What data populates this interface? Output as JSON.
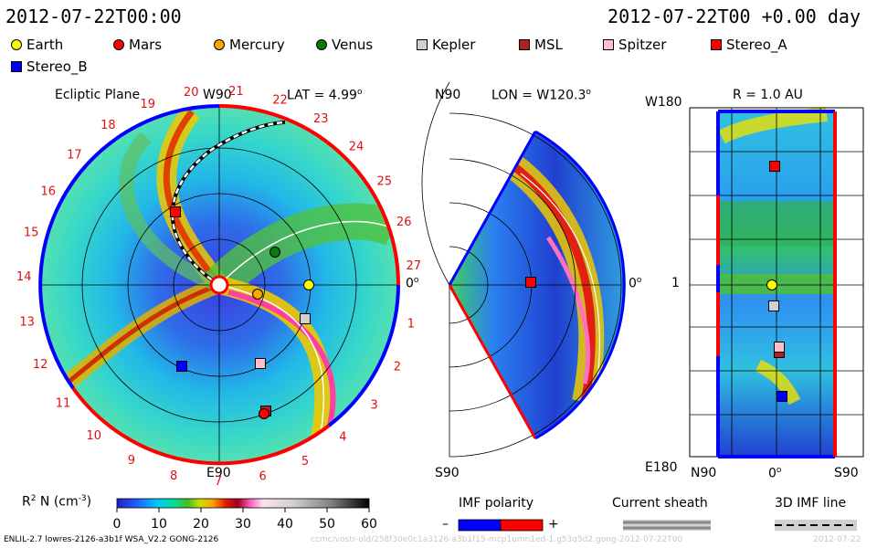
{
  "header": {
    "left_time": "2012-07-22T00:00",
    "right_time": "2012-07-22T00 +0.00 day"
  },
  "legend": [
    {
      "name": "Earth",
      "color": "#ffff00",
      "shape": "circle"
    },
    {
      "name": "Mars",
      "color": "#ff0000",
      "shape": "circle"
    },
    {
      "name": "Mercury",
      "color": "#ffa500",
      "shape": "circle"
    },
    {
      "name": "Venus",
      "color": "#0a7a0a",
      "shape": "circle"
    },
    {
      "name": "Kepler",
      "color": "#d0d0d0",
      "shape": "square"
    },
    {
      "name": "MSL",
      "color": "#b02020",
      "shape": "square"
    },
    {
      "name": "Spitzer",
      "color": "#ffc0cb",
      "shape": "square"
    },
    {
      "name": "Stereo_A",
      "color": "#ff0000",
      "shape": "square"
    },
    {
      "name": "Stereo_B",
      "color": "#0000ff",
      "shape": "square"
    }
  ],
  "panel_ecliptic": {
    "title": "Ecliptic Plane",
    "top_label": "W90",
    "lat": "LAT = 4.99",
    "lat_sup": "o",
    "bottom_label": "E90",
    "right_label": "0",
    "right_label_sup": "o",
    "carrington_numbers": [
      "1",
      "2",
      "3",
      "4",
      "5",
      "6",
      "7",
      "8",
      "9",
      "10",
      "11",
      "12",
      "13",
      "14",
      "15",
      "16",
      "17",
      "18",
      "19",
      "20",
      "21",
      "22",
      "23",
      "24",
      "25",
      "26",
      "27"
    ]
  },
  "panel_meridional": {
    "top_left": "N90",
    "lon": "LON = W120.3",
    "lon_sup": "o",
    "bottom_left": "S90",
    "right_label": "0",
    "right_label_sup": "o"
  },
  "panel_r": {
    "title": "R = 1.0 AU",
    "top_left": "W180",
    "mid_left": "1",
    "bottom_left": "E180",
    "x_left": "N90",
    "x_mid": "0",
    "x_mid_sup": "o",
    "x_right": "S90"
  },
  "colorbar": {
    "label": "R",
    "label_sup": "2",
    "label_rest": "N (cm",
    "label_exp": "-3",
    "label_end": ")",
    "ticks": [
      "0",
      "10",
      "20",
      "30",
      "40",
      "50",
      "60"
    ]
  },
  "imf_polarity": {
    "title": "IMF polarity",
    "minus": "–",
    "plus": "+"
  },
  "current_sheath": {
    "title": "Current sheath"
  },
  "imf_line": {
    "title": "3D IMF line"
  },
  "footer": {
    "left": "ENLIL-2.7 lowres-2126-a3b1f WSA_V2.2 GONG-2126",
    "right": "ccmc/vostr-old/258f30e0c1a3126-a3b1f15-mcp1umn1ed-1.g53q5d2.gong-2012-07-22T00",
    "date": "2012-07-22"
  },
  "colors": {
    "red_border": "#ff0000",
    "blue_border": "#0000ff"
  }
}
